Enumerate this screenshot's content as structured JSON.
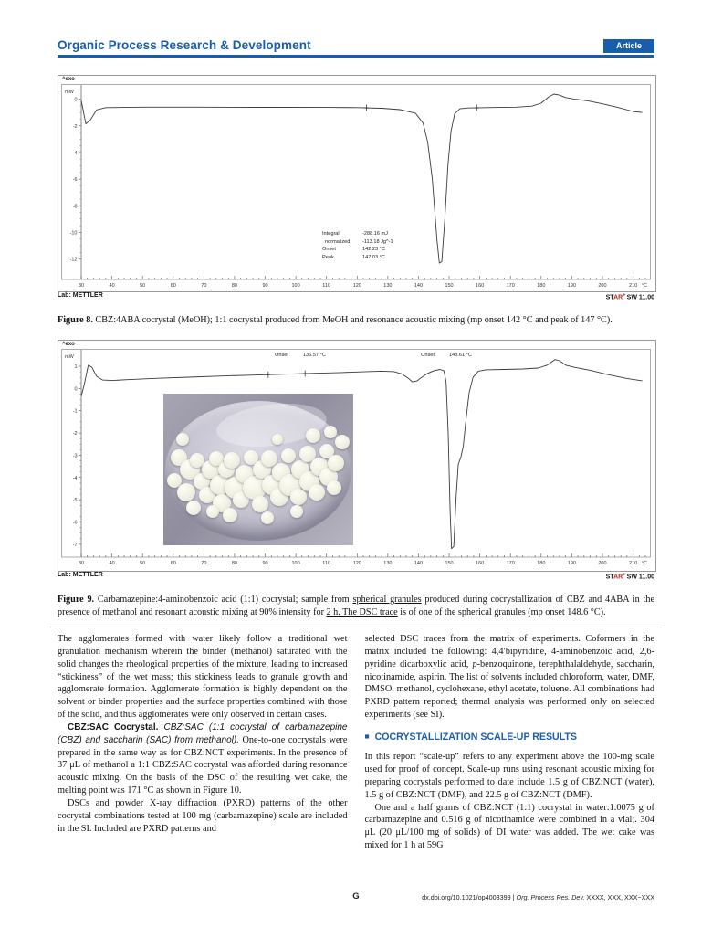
{
  "header": {
    "journal": "Organic Process Research & Development",
    "badge": "Article",
    "accent_color": "#1a5dab"
  },
  "chart_footer": {
    "lab": "Lab: METTLER",
    "software": {
      "pre": "ST",
      "red": "AR",
      "sup": "e",
      "post": " SW 11.00"
    }
  },
  "figure8": {
    "exo": "^exo",
    "annotation": {
      "rows": [
        {
          "label": "Integral",
          "value": "-288.16 mJ"
        },
        {
          "label": "normalized",
          "value": "-113.18 Jg^-1"
        },
        {
          "label": "Onset",
          "value": "142.23 °C"
        },
        {
          "label": "Peak",
          "value": "147.03 °C"
        }
      ]
    },
    "caption": [
      {
        "t": "Figure 8.",
        "s": "boldserif"
      },
      {
        "t": " CBZ:4ABA cocrystal (MeOH); 1:1 cocrystal produced from MeOH and resonance acoustic mixing (mp onset 142 °C and peak of 147 °C)."
      }
    ]
  },
  "figure9": {
    "exo": "^exo",
    "annotations": [
      {
        "label": "Onset",
        "value": "136.57 °C"
      },
      {
        "label": "Onset",
        "value": "148.61 °C"
      }
    ],
    "caption": [
      {
        "t": "Figure 9.",
        "s": "boldserif"
      },
      {
        "t": " Carbamazepine:4-aminobenzoic acid (1:1) cocrystal; sample from "
      },
      {
        "t": "spherical granules",
        "s": "underline"
      },
      {
        "t": " produced during cocrystallization of CBZ and 4ABA in the presence of methanol and resonant acoustic mixing at 90% intensity for "
      },
      {
        "t": "2 h. The DSC trace",
        "s": "underline"
      },
      {
        "t": " is of one of the spherical granules (mp onset 148.6 °C)."
      }
    ],
    "photo": {
      "description": "dish of white spherical granules",
      "granules": [
        [
          8,
          42,
          9
        ],
        [
          14,
          50,
          11
        ],
        [
          6,
          57,
          8
        ],
        [
          12,
          65,
          10
        ],
        [
          20,
          58,
          9
        ],
        [
          18,
          44,
          8
        ],
        [
          25,
          50,
          10
        ],
        [
          23,
          67,
          9
        ],
        [
          30,
          60,
          11
        ],
        [
          28,
          43,
          8
        ],
        [
          33,
          50,
          9
        ],
        [
          31,
          72,
          10
        ],
        [
          38,
          62,
          12
        ],
        [
          36,
          44,
          9
        ],
        [
          43,
          53,
          10
        ],
        [
          41,
          70,
          9
        ],
        [
          48,
          62,
          13
        ],
        [
          46,
          42,
          8
        ],
        [
          52,
          50,
          10
        ],
        [
          51,
          73,
          9
        ],
        [
          57,
          60,
          11
        ],
        [
          56,
          43,
          9
        ],
        [
          62,
          52,
          10
        ],
        [
          61,
          68,
          10
        ],
        [
          67,
          60,
          12
        ],
        [
          66,
          41,
          8
        ],
        [
          72,
          50,
          10
        ],
        [
          71,
          68,
          9
        ],
        [
          77,
          58,
          11
        ],
        [
          76,
          40,
          9
        ],
        [
          82,
          48,
          10
        ],
        [
          81,
          65,
          9
        ],
        [
          87,
          55,
          10
        ],
        [
          86,
          38,
          8
        ],
        [
          91,
          46,
          9
        ],
        [
          90,
          62,
          8
        ],
        [
          94,
          32,
          8
        ],
        [
          88,
          25,
          7
        ],
        [
          79,
          28,
          8
        ],
        [
          16,
          75,
          8
        ],
        [
          35,
          80,
          8
        ],
        [
          55,
          82,
          7
        ],
        [
          70,
          78,
          7
        ],
        [
          26,
          78,
          7
        ],
        [
          10,
          30,
          7
        ],
        [
          60,
          30,
          6
        ]
      ]
    }
  },
  "chart_data": [
    {
      "type": "line",
      "title": "DSC trace: CBZ:4ABA cocrystal (MeOH), Figure 8",
      "xlabel": "°C",
      "ylabel": "mW",
      "xlim": [
        30,
        214
      ],
      "x_label_max": 210,
      "x_tick_major": 10,
      "x_tick_minor": 2,
      "ylim": [
        -13.4,
        1.0
      ],
      "y_ticks": [
        0,
        -2,
        -4,
        -6,
        -8,
        -10,
        -12
      ],
      "grid": false,
      "markers_x": [
        123,
        159
      ],
      "annotations": {
        "integral_mJ": -288.16,
        "normalized_Jg": -113.18,
        "onset_C": 142.23,
        "peak_C": 147.03
      },
      "points": [
        [
          30,
          -0.1
        ],
        [
          31.5,
          -1.85
        ],
        [
          33,
          -1.55
        ],
        [
          35,
          -0.8
        ],
        [
          38,
          -0.63
        ],
        [
          50,
          -0.6
        ],
        [
          70,
          -0.6
        ],
        [
          90,
          -0.61
        ],
        [
          110,
          -0.62
        ],
        [
          120,
          -0.63
        ],
        [
          128,
          -0.68
        ],
        [
          134,
          -0.78
        ],
        [
          139,
          -1.05
        ],
        [
          141.5,
          -1.8
        ],
        [
          143,
          -3.2
        ],
        [
          144.5,
          -6.0
        ],
        [
          146,
          -10.5
        ],
        [
          146.8,
          -12.3
        ],
        [
          147.6,
          -12.2
        ],
        [
          148.6,
          -9.0
        ],
        [
          149.6,
          -5.0
        ],
        [
          150.6,
          -2.4
        ],
        [
          151.8,
          -1.1
        ],
        [
          153.5,
          -0.72
        ],
        [
          156,
          -0.66
        ],
        [
          160,
          -0.64
        ],
        [
          166,
          -0.62
        ],
        [
          172,
          -0.6
        ],
        [
          177,
          -0.52
        ],
        [
          180,
          -0.3
        ],
        [
          182.5,
          0.18
        ],
        [
          184.2,
          0.38
        ],
        [
          186,
          0.3
        ],
        [
          188,
          0.12
        ],
        [
          191,
          0.0
        ],
        [
          195,
          -0.12
        ],
        [
          200,
          -0.35
        ],
        [
          205,
          -0.62
        ],
        [
          210,
          -0.92
        ],
        [
          213,
          -1.0
        ]
      ]
    },
    {
      "type": "line",
      "title": "DSC trace: CBZ:4ABA spherical granule, Figure 9",
      "xlabel": "°C",
      "ylabel": "mW",
      "xlim": [
        30,
        214
      ],
      "x_label_max": 210,
      "x_tick_major": 10,
      "x_tick_minor": 2,
      "ylim": [
        -7.5,
        1.7
      ],
      "y_ticks": [
        1,
        0,
        -1,
        -2,
        -3,
        -4,
        -5,
        -6,
        -7
      ],
      "grid": false,
      "markers_x": [
        91,
        103
      ],
      "annotations": {
        "onsets_C": [
          136.57,
          148.61
        ]
      },
      "points": [
        [
          30,
          -0.35
        ],
        [
          31,
          0.2
        ],
        [
          32.3,
          1.05
        ],
        [
          33.5,
          0.95
        ],
        [
          35,
          0.55
        ],
        [
          37,
          0.38
        ],
        [
          40,
          0.36
        ],
        [
          45,
          0.4
        ],
        [
          55,
          0.46
        ],
        [
          65,
          0.51
        ],
        [
          75,
          0.56
        ],
        [
          85,
          0.6
        ],
        [
          95,
          0.64
        ],
        [
          105,
          0.68
        ],
        [
          115,
          0.72
        ],
        [
          123,
          0.76
        ],
        [
          128,
          0.78
        ],
        [
          132,
          0.76
        ],
        [
          134.5,
          0.66
        ],
        [
          136.5,
          0.48
        ],
        [
          138,
          0.3
        ],
        [
          139.5,
          0.34
        ],
        [
          141,
          0.5
        ],
        [
          143,
          0.68
        ],
        [
          145,
          0.8
        ],
        [
          147,
          0.86
        ],
        [
          148.3,
          0.8
        ],
        [
          149,
          0.3
        ],
        [
          149.7,
          -2.0
        ],
        [
          150.3,
          -5.5
        ],
        [
          150.8,
          -7.2
        ],
        [
          151.5,
          -7.1
        ],
        [
          152.3,
          -4.8
        ],
        [
          153,
          -3.4
        ],
        [
          153.8,
          -3.1
        ],
        [
          154.6,
          -2.6
        ],
        [
          155.5,
          -1.4
        ],
        [
          156.5,
          -0.2
        ],
        [
          157.8,
          0.5
        ],
        [
          159.5,
          0.78
        ],
        [
          162,
          0.84
        ],
        [
          168,
          0.86
        ],
        [
          174,
          0.88
        ],
        [
          179,
          0.92
        ],
        [
          182,
          1.05
        ],
        [
          184.5,
          1.3
        ],
        [
          186,
          1.25
        ],
        [
          188,
          1.05
        ],
        [
          191,
          0.95
        ],
        [
          196,
          0.82
        ],
        [
          202,
          0.62
        ],
        [
          208,
          0.45
        ],
        [
          213,
          0.35
        ]
      ]
    }
  ],
  "body": {
    "left": {
      "p1": "The agglomerates formed with water likely follow a traditional wet granulation mechanism wherein the binder (methanol) saturated with the solid changes the rheological properties of the mixture, leading to increased “stickiness” of the wet mass; this stickiness leads to granule growth and agglomerate formation. Agglomerate formation is highly dependent on the solvent or binder properties and the surface properties combined with those of the solid, and thus agglomerates were only observed in certain cases.",
      "p2": [
        {
          "t": "CBZ:SAC Cocrystal.",
          "s": "bold"
        },
        {
          "t": " CBZ:SAC (1:1 cocrystal of carbamazepine (CBZ) and saccharin (SAC) from methanol).",
          "s": "italic-sans"
        },
        {
          "t": " One-to-one cocrystals were prepared in the same way as for CBZ:NCT experiments. In the presence of 37 μL of methanol a 1:1 CBZ:SAC cocrystal was afforded during resonance acoustic mixing. On the basis of the DSC of the resulting wet cake, the melting point was 171 °C as shown in Figure 10."
        }
      ],
      "p3": "DSCs and powder X-ray diffraction (PXRD) patterns of the other cocrystal combinations tested at 100 mg (carbamazepine) scale are included in the SI. Included are PXRD patterns and"
    },
    "right": {
      "p1": [
        {
          "t": "selected DSC traces from the matrix of experiments. Coformers in the matrix included the following: 4,4′bipyridine, 4-aminobenzoic acid, 2,6-pyridine dicarboxylic acid, "
        },
        {
          "t": "p",
          "s": "italic"
        },
        {
          "t": "-benzoquinone, terephthalaldehyde, saccharin, nicotinamide, aspirin. The list of solvents included chloroform, water, DMF, DMSO, methanol, cyclohexane, ethyl acetate, toluene. All combinations had PXRD pattern reported; thermal analysis was performed only on selected experiments (see SI)."
        }
      ],
      "heading": {
        "bullet": "■",
        "text": "COCRYSTALLIZATION SCALE-UP RESULTS"
      },
      "p2": "In this report “scale-up” refers to any experiment above the 100-mg scale used for proof of concept. Scale-up runs using resonant acoustic mixing for preparing cocrystals performed to date include 1.5 g of CBZ:NCT (water), 1.5 g of CBZ:NCT (DMF), and 22.5 g of CBZ:NCT (DMF).",
      "p3": "One and a half grams of CBZ:NCT (1:1) cocrystal in water:1.0075 g of carbamazepine and 0.516 g of nicotinamide were combined in a vial;. 304 μL (20 μL/100 mg of solids) of DI water was added. The wet cake was mixed for 1 h at 59G"
    }
  },
  "footer": {
    "page_letter": "G",
    "doi": [
      {
        "t": "dx.doi.org/10.1021/op4003399 | "
      },
      {
        "t": "Org. Process Res. Dev.",
        "s": "italic"
      },
      {
        "t": " XXXX, XXX, XXX−XXX"
      }
    ]
  }
}
